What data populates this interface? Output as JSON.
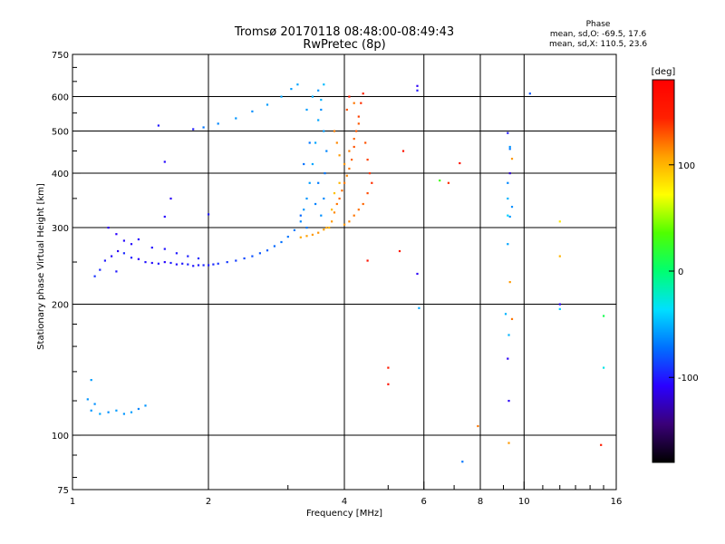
{
  "chart_data": {
    "type": "scatter",
    "title": "Tromsø 20170118 08:48:00-08:49:43",
    "subtitle": "RwPretec (8p)",
    "xlabel": "Frequency [MHz]",
    "ylabel": "Stationary phase Virtual Height [km]",
    "x_scale": "log",
    "y_scale": "log",
    "xlim": [
      1,
      16
    ],
    "ylim": [
      75,
      750
    ],
    "x_ticks": [
      1,
      2,
      4,
      6,
      8,
      10,
      16
    ],
    "x_tick_labels": [
      "1",
      "2",
      "4",
      "6",
      "8",
      "10",
      "16"
    ],
    "y_ticks": [
      75,
      100,
      200,
      300,
      400,
      500,
      600,
      750
    ],
    "y_tick_labels": [
      "75",
      "100",
      "200",
      "300",
      "400",
      "500",
      "600",
      "750"
    ],
    "grid": true,
    "phase_stats": {
      "heading": "Phase",
      "o_line": "mean, sd,O: -69.5, 17.6",
      "x_line": "mean, sd,X: 110.5, 23.6"
    },
    "colorbar": {
      "label": "[deg]",
      "range": [
        -180,
        180
      ],
      "ticks": [
        100,
        0,
        -100
      ],
      "tick_labels": [
        "100",
        "0",
        "-100"
      ],
      "colors": [
        "#000000",
        "#3a0078",
        "#2a00ff",
        "#0070ff",
        "#00e0ff",
        "#00ff70",
        "#50ff00",
        "#ffff00",
        "#ffa000",
        "#ff2000",
        "#ff0000"
      ]
    },
    "series": [
      {
        "points": [
          [
            1.18,
            252
          ],
          [
            1.22,
            258
          ],
          [
            1.26,
            265
          ],
          [
            1.3,
            262
          ],
          [
            1.35,
            256
          ],
          [
            1.4,
            254
          ],
          [
            1.45,
            250
          ],
          [
            1.5,
            249
          ],
          [
            1.55,
            248
          ],
          [
            1.6,
            250
          ],
          [
            1.65,
            249
          ],
          [
            1.7,
            247
          ],
          [
            1.75,
            248
          ],
          [
            1.8,
            247
          ],
          [
            1.85,
            245
          ],
          [
            1.9,
            246
          ],
          [
            1.95,
            246
          ],
          [
            2.0,
            246
          ],
          [
            2.05,
            247
          ],
          [
            2.1,
            248
          ],
          [
            2.2,
            250
          ],
          [
            2.3,
            252
          ],
          [
            2.4,
            255
          ],
          [
            2.5,
            258
          ],
          [
            2.6,
            262
          ],
          [
            2.7,
            266
          ],
          [
            2.8,
            272
          ],
          [
            2.9,
            278
          ],
          [
            3.0,
            286
          ],
          [
            3.1,
            296
          ],
          [
            3.2,
            310
          ],
          [
            3.25,
            330
          ],
          [
            3.3,
            350
          ],
          [
            3.35,
            380
          ],
          [
            3.4,
            420
          ],
          [
            3.45,
            470
          ],
          [
            3.5,
            530
          ],
          [
            3.55,
            590
          ],
          [
            3.6,
            640
          ],
          [
            1.2,
            300
          ],
          [
            1.25,
            290
          ],
          [
            1.3,
            280
          ],
          [
            1.35,
            275
          ],
          [
            1.4,
            282
          ],
          [
            1.5,
            270
          ],
          [
            1.6,
            268
          ],
          [
            1.7,
            262
          ],
          [
            1.8,
            258
          ],
          [
            1.9,
            255
          ],
          [
            1.15,
            240
          ],
          [
            1.12,
            232
          ],
          [
            1.25,
            238
          ],
          [
            1.1,
            114
          ],
          [
            1.15,
            112
          ],
          [
            1.2,
            113
          ],
          [
            1.25,
            114
          ],
          [
            1.3,
            112
          ],
          [
            1.35,
            113
          ],
          [
            1.4,
            115
          ],
          [
            1.45,
            117
          ],
          [
            1.12,
            118
          ],
          [
            1.08,
            121
          ],
          [
            1.1,
            134
          ],
          [
            1.85,
            505
          ],
          [
            1.95,
            510
          ],
          [
            2.1,
            520
          ],
          [
            2.3,
            535
          ],
          [
            2.5,
            555
          ],
          [
            2.7,
            575
          ],
          [
            2.9,
            600
          ],
          [
            3.05,
            625
          ],
          [
            3.15,
            640
          ],
          [
            1.55,
            515
          ],
          [
            1.6,
            425
          ],
          [
            1.65,
            350
          ],
          [
            1.6,
            318
          ],
          [
            2.0,
            322
          ],
          [
            3.3,
            560
          ],
          [
            3.4,
            600
          ],
          [
            3.5,
            620
          ],
          [
            3.55,
            560
          ],
          [
            3.6,
            500
          ],
          [
            3.65,
            450
          ],
          [
            3.62,
            400
          ],
          [
            3.5,
            380
          ],
          [
            3.45,
            340
          ],
          [
            3.55,
            320
          ],
          [
            3.3,
            300
          ],
          [
            3.2,
            320
          ],
          [
            3.25,
            420
          ],
          [
            3.35,
            470
          ],
          [
            3.6,
            350
          ],
          [
            9.2,
            495
          ],
          [
            9.3,
            455
          ],
          [
            9.3,
            400
          ],
          [
            9.2,
            380
          ],
          [
            9.4,
            335
          ],
          [
            9.2,
            350
          ],
          [
            9.3,
            318
          ],
          [
            9.2,
            275
          ],
          [
            9.1,
            190
          ],
          [
            9.25,
            170
          ],
          [
            9.2,
            150
          ],
          [
            9.25,
            120
          ],
          [
            5.8,
            620
          ],
          [
            5.8,
            635
          ],
          [
            5.8,
            235
          ],
          [
            10.3,
            610
          ],
          [
            9.3,
            460
          ],
          [
            12.0,
            200
          ],
          [
            12.0,
            195
          ],
          [
            7.3,
            87
          ],
          [
            5.85,
            196
          ]
        ],
        "phase": [
          -100,
          -105,
          -110,
          -95,
          -100,
          -108,
          -102,
          -104,
          -100,
          -106,
          -98,
          -103,
          -100,
          -97,
          -101,
          -99,
          -96,
          -98,
          -95,
          -92,
          -90,
          -88,
          -85,
          -82,
          -80,
          -78,
          -75,
          -72,
          -70,
          -68,
          -65,
          -60,
          -60,
          -58,
          -55,
          -55,
          -55,
          -50,
          -48,
          -110,
          -108,
          -105,
          -104,
          -106,
          -103,
          -102,
          -100,
          -98,
          -96,
          -95,
          -92,
          -100,
          -60,
          -55,
          -62,
          -58,
          -60,
          -57,
          -65,
          -60,
          -62,
          -60,
          -58,
          -100,
          -70,
          -65,
          -60,
          -62,
          -58,
          -55,
          -58,
          -55,
          -100,
          -105,
          -110,
          -105,
          -100,
          -58,
          -55,
          -60,
          -62,
          -58,
          -65,
          -70,
          -68,
          -66,
          -62,
          -70,
          -75,
          -72,
          -70,
          -64,
          -100,
          -70,
          -120,
          -65,
          -62,
          -50,
          -60,
          -55,
          -50,
          -50,
          -110,
          -110,
          -100,
          -110,
          -110,
          -80,
          -60,
          -110,
          -40,
          -70,
          -55
        ]
      },
      {
        "points": [
          [
            3.7,
            300
          ],
          [
            3.75,
            310
          ],
          [
            3.8,
            325
          ],
          [
            3.85,
            340
          ],
          [
            3.9,
            350
          ],
          [
            3.95,
            365
          ],
          [
            4.0,
            380
          ],
          [
            4.05,
            395
          ],
          [
            4.1,
            410
          ],
          [
            4.15,
            430
          ],
          [
            4.2,
            460
          ],
          [
            4.25,
            500
          ],
          [
            4.3,
            540
          ],
          [
            4.35,
            580
          ],
          [
            4.4,
            610
          ],
          [
            3.2,
            285
          ],
          [
            3.3,
            287
          ],
          [
            3.4,
            289
          ],
          [
            3.5,
            292
          ],
          [
            3.6,
            297
          ],
          [
            3.65,
            300
          ],
          [
            3.75,
            330
          ],
          [
            3.8,
            360
          ],
          [
            3.9,
            380
          ],
          [
            4.0,
            420
          ],
          [
            4.1,
            450
          ],
          [
            4.2,
            480
          ],
          [
            4.3,
            520
          ],
          [
            4.45,
            470
          ],
          [
            4.5,
            430
          ],
          [
            4.55,
            400
          ],
          [
            4.6,
            380
          ],
          [
            4.5,
            360
          ],
          [
            4.4,
            340
          ],
          [
            4.3,
            330
          ],
          [
            4.2,
            320
          ],
          [
            4.1,
            310
          ],
          [
            4.0,
            305
          ],
          [
            3.9,
            440
          ],
          [
            4.05,
            560
          ],
          [
            4.1,
            600
          ],
          [
            4.2,
            580
          ],
          [
            3.85,
            470
          ],
          [
            3.8,
            500
          ],
          [
            4.5,
            252
          ],
          [
            5.0,
            143
          ],
          [
            5.0,
            131
          ],
          [
            5.4,
            450
          ],
          [
            6.5,
            385
          ],
          [
            6.8,
            380
          ],
          [
            7.2,
            422
          ],
          [
            7.9,
            105
          ],
          [
            5.3,
            265
          ],
          [
            9.3,
            225
          ],
          [
            9.25,
            96
          ],
          [
            14.8,
            95
          ],
          [
            9.4,
            185
          ],
          [
            9.2,
            320
          ],
          [
            15.0,
            143
          ],
          [
            15.0,
            188
          ],
          [
            12.0,
            310
          ],
          [
            12.0,
            258
          ],
          [
            9.4,
            432
          ]
        ],
        "phase": [
          100,
          110,
          115,
          120,
          125,
          122,
          118,
          115,
          120,
          125,
          130,
          128,
          135,
          140,
          145,
          105,
          108,
          110,
          112,
          108,
          105,
          98,
          95,
          100,
          110,
          118,
          125,
          128,
          130,
          135,
          138,
          140,
          132,
          125,
          122,
          120,
          115,
          110,
          110,
          130,
          150,
          120,
          115,
          118,
          160,
          150,
          160,
          160,
          30,
          140,
          160,
          120,
          150,
          110,
          110,
          150,
          120,
          -40,
          -30,
          10,
          80,
          100,
          110
        ]
      }
    ]
  }
}
